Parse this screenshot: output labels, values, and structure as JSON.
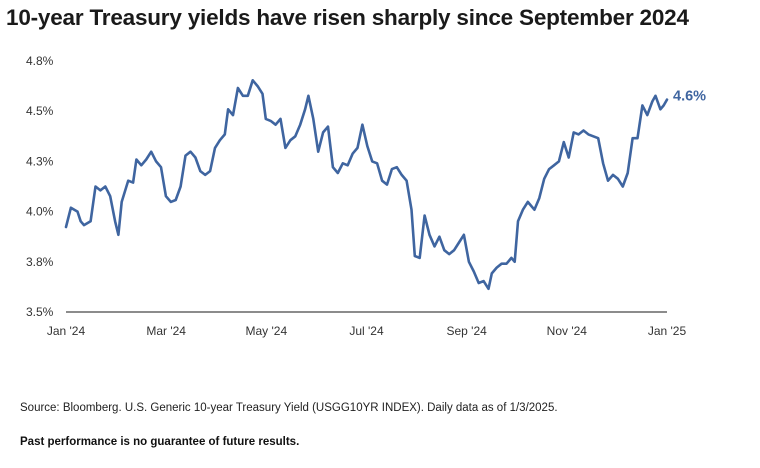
{
  "title": "10-year Treasury yields have risen sharply since September 2024",
  "source": "Source: Bloomberg. U.S. Generic 10-year Treasury Yield (USGG10YR INDEX). Daily data as of 1/3/2025.",
  "disclaimer": "Past performance is no guarantee of future results.",
  "colors": {
    "line": "#3f65a0",
    "axis": "#666666",
    "tick_text": "#333333"
  },
  "chart_data": {
    "type": "line",
    "title": "10-year Treasury yields have risen sharply since September 2024",
    "xlabel": "",
    "ylabel": "",
    "grid": false,
    "x_ticks": [
      "Jan '24",
      "Mar '24",
      "May '24",
      "Jul '24",
      "Sep '24",
      "Nov '24",
      "Jan '25"
    ],
    "y_ticks": [
      "3.5%",
      "3.8%",
      "4.0%",
      "4.3%",
      "4.5%",
      "4.8%"
    ],
    "x_range": [
      "2024-01-02",
      "2025-01-03"
    ],
    "y_range": [
      3.5,
      4.8
    ],
    "end_label": "4.6%",
    "series": [
      {
        "values": [
          [
            "2024-01-02",
            3.94
          ],
          [
            "2024-01-05",
            4.04
          ],
          [
            "2024-01-09",
            4.02
          ],
          [
            "2024-01-11",
            3.97
          ],
          [
            "2024-01-13",
            3.95
          ],
          [
            "2024-01-17",
            3.97
          ],
          [
            "2024-01-20",
            4.15
          ],
          [
            "2024-01-23",
            4.13
          ],
          [
            "2024-01-26",
            4.15
          ],
          [
            "2024-01-29",
            4.1
          ],
          [
            "2024-02-01",
            3.97
          ],
          [
            "2024-02-03",
            3.9
          ],
          [
            "2024-02-05",
            4.07
          ],
          [
            "2024-02-09",
            4.18
          ],
          [
            "2024-02-12",
            4.17
          ],
          [
            "2024-02-14",
            4.29
          ],
          [
            "2024-02-17",
            4.26
          ],
          [
            "2024-02-20",
            4.29
          ],
          [
            "2024-02-23",
            4.33
          ],
          [
            "2024-02-26",
            4.28
          ],
          [
            "2024-02-29",
            4.25
          ],
          [
            "2024-03-03",
            4.1
          ],
          [
            "2024-03-06",
            4.07
          ],
          [
            "2024-03-09",
            4.08
          ],
          [
            "2024-03-12",
            4.15
          ],
          [
            "2024-03-15",
            4.31
          ],
          [
            "2024-03-18",
            4.33
          ],
          [
            "2024-03-21",
            4.3
          ],
          [
            "2024-03-24",
            4.23
          ],
          [
            "2024-03-27",
            4.21
          ],
          [
            "2024-03-30",
            4.23
          ],
          [
            "2024-04-02",
            4.35
          ],
          [
            "2024-04-05",
            4.39
          ],
          [
            "2024-04-08",
            4.42
          ],
          [
            "2024-04-10",
            4.55
          ],
          [
            "2024-04-13",
            4.52
          ],
          [
            "2024-04-16",
            4.66
          ],
          [
            "2024-04-19",
            4.62
          ],
          [
            "2024-04-22",
            4.62
          ],
          [
            "2024-04-25",
            4.7
          ],
          [
            "2024-04-28",
            4.67
          ],
          [
            "2024-05-01",
            4.63
          ],
          [
            "2024-05-03",
            4.5
          ],
          [
            "2024-05-06",
            4.49
          ],
          [
            "2024-05-09",
            4.47
          ],
          [
            "2024-05-12",
            4.5
          ],
          [
            "2024-05-15",
            4.35
          ],
          [
            "2024-05-18",
            4.39
          ],
          [
            "2024-05-21",
            4.41
          ],
          [
            "2024-05-24",
            4.47
          ],
          [
            "2024-05-27",
            4.55
          ],
          [
            "2024-05-29",
            4.62
          ],
          [
            "2024-06-01",
            4.5
          ],
          [
            "2024-06-04",
            4.33
          ],
          [
            "2024-06-07",
            4.43
          ],
          [
            "2024-06-10",
            4.46
          ],
          [
            "2024-06-13",
            4.25
          ],
          [
            "2024-06-16",
            4.22
          ],
          [
            "2024-06-19",
            4.27
          ],
          [
            "2024-06-22",
            4.26
          ],
          [
            "2024-06-25",
            4.32
          ],
          [
            "2024-06-28",
            4.35
          ],
          [
            "2024-07-01",
            4.47
          ],
          [
            "2024-07-04",
            4.36
          ],
          [
            "2024-07-07",
            4.28
          ],
          [
            "2024-07-10",
            4.27
          ],
          [
            "2024-07-13",
            4.18
          ],
          [
            "2024-07-16",
            4.16
          ],
          [
            "2024-07-19",
            4.24
          ],
          [
            "2024-07-22",
            4.25
          ],
          [
            "2024-07-25",
            4.21
          ],
          [
            "2024-07-28",
            4.18
          ],
          [
            "2024-07-31",
            4.03
          ],
          [
            "2024-08-02",
            3.79
          ],
          [
            "2024-08-05",
            3.78
          ],
          [
            "2024-08-08",
            4.0
          ],
          [
            "2024-08-11",
            3.9
          ],
          [
            "2024-08-14",
            3.84
          ],
          [
            "2024-08-17",
            3.89
          ],
          [
            "2024-08-20",
            3.82
          ],
          [
            "2024-08-23",
            3.8
          ],
          [
            "2024-08-26",
            3.82
          ],
          [
            "2024-08-29",
            3.86
          ],
          [
            "2024-09-01",
            3.9
          ],
          [
            "2024-09-04",
            3.76
          ],
          [
            "2024-09-07",
            3.71
          ],
          [
            "2024-09-10",
            3.65
          ],
          [
            "2024-09-13",
            3.66
          ],
          [
            "2024-09-16",
            3.62
          ],
          [
            "2024-09-18",
            3.7
          ],
          [
            "2024-09-21",
            3.73
          ],
          [
            "2024-09-24",
            3.75
          ],
          [
            "2024-09-27",
            3.75
          ],
          [
            "2024-09-30",
            3.78
          ],
          [
            "2024-10-02",
            3.76
          ],
          [
            "2024-10-04",
            3.97
          ],
          [
            "2024-10-07",
            4.03
          ],
          [
            "2024-10-10",
            4.07
          ],
          [
            "2024-10-14",
            4.03
          ],
          [
            "2024-10-17",
            4.09
          ],
          [
            "2024-10-20",
            4.19
          ],
          [
            "2024-10-23",
            4.24
          ],
          [
            "2024-10-26",
            4.26
          ],
          [
            "2024-10-29",
            4.28
          ],
          [
            "2024-11-01",
            4.38
          ],
          [
            "2024-11-04",
            4.3
          ],
          [
            "2024-11-07",
            4.43
          ],
          [
            "2024-11-10",
            4.42
          ],
          [
            "2024-11-13",
            4.44
          ],
          [
            "2024-11-16",
            4.42
          ],
          [
            "2024-11-19",
            4.41
          ],
          [
            "2024-11-22",
            4.4
          ],
          [
            "2024-11-25",
            4.27
          ],
          [
            "2024-11-28",
            4.18
          ],
          [
            "2024-12-01",
            4.21
          ],
          [
            "2024-12-04",
            4.19
          ],
          [
            "2024-12-07",
            4.15
          ],
          [
            "2024-12-10",
            4.22
          ],
          [
            "2024-12-13",
            4.4
          ],
          [
            "2024-12-16",
            4.4
          ],
          [
            "2024-12-19",
            4.57
          ],
          [
            "2024-12-22",
            4.52
          ],
          [
            "2024-12-25",
            4.59
          ],
          [
            "2024-12-27",
            4.62
          ],
          [
            "2024-12-30",
            4.55
          ],
          [
            "2025-01-01",
            4.57
          ],
          [
            "2025-01-03",
            4.6
          ]
        ]
      }
    ]
  }
}
